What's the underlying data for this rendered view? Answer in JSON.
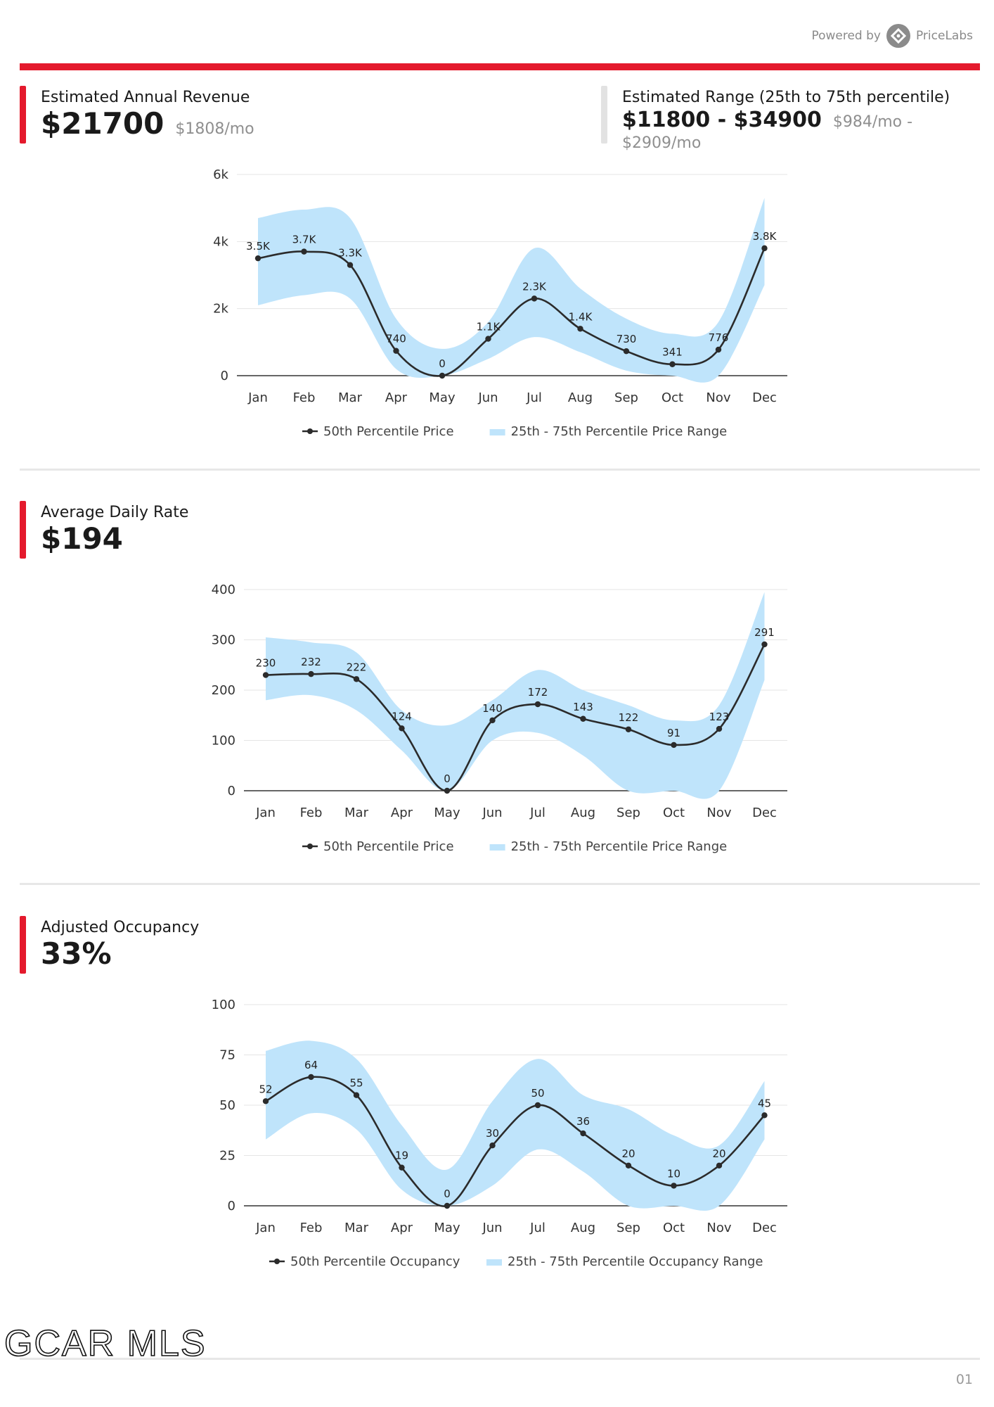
{
  "header": {
    "powered_by": "Powered by",
    "brand": "PriceLabs",
    "accent_color": "#e41a2d"
  },
  "revenue": {
    "label": "Estimated Annual Revenue",
    "value": "$21700",
    "monthly": "$1808/mo"
  },
  "range": {
    "label": "Estimated Range (25th to 75th percentile)",
    "value": "$11800 - $34900",
    "monthly": "$984/mo - $2909/mo"
  },
  "adr": {
    "label": "Average Daily Rate",
    "value": "$194"
  },
  "occupancy": {
    "label": "Adjusted Occupancy",
    "value": "33%"
  },
  "footer": {
    "logo_text": "GCAR MLS",
    "page": "01"
  },
  "chart_data": [
    {
      "type": "line",
      "title": "",
      "categories": [
        "Jan",
        "Feb",
        "Mar",
        "Apr",
        "May",
        "Jun",
        "Jul",
        "Aug",
        "Sep",
        "Oct",
        "Nov",
        "Dec"
      ],
      "ylim": [
        0,
        6000
      ],
      "yticks": [
        0,
        2000,
        4000,
        6000
      ],
      "ytick_labels": [
        "0",
        "2k",
        "4k",
        "6k"
      ],
      "series": [
        {
          "name": "50th Percentile Price",
          "values": [
            3500,
            3700,
            3300,
            740,
            0,
            1100,
            2300,
            1400,
            730,
            341,
            776,
            3800
          ],
          "labels": [
            "3.5K",
            "3.7K",
            "3.3K",
            "740",
            "0",
            "1.1K",
            "2.3K",
            "1.4K",
            "730",
            "341",
            "776",
            "3.8K"
          ]
        }
      ],
      "band": {
        "name": "25th - 75th Percentile Price Range",
        "low": [
          2100,
          2400,
          2300,
          200,
          0,
          500,
          1150,
          700,
          150,
          0,
          0,
          2700
        ],
        "high": [
          4700,
          4950,
          4700,
          1700,
          800,
          1600,
          3800,
          2600,
          1700,
          1250,
          1600,
          5300
        ]
      },
      "colors": {
        "line": "#2b2b2b",
        "band": "#bfe4fb"
      },
      "grid": true,
      "legend": "bottom"
    },
    {
      "type": "line",
      "title": "",
      "categories": [
        "Jan",
        "Feb",
        "Mar",
        "Apr",
        "May",
        "Jun",
        "Jul",
        "Aug",
        "Sep",
        "Oct",
        "Nov",
        "Dec"
      ],
      "ylim": [
        0,
        400
      ],
      "yticks": [
        0,
        100,
        200,
        300,
        400
      ],
      "ytick_labels": [
        "0",
        "100",
        "200",
        "300",
        "400"
      ],
      "series": [
        {
          "name": "50th Percentile Price",
          "values": [
            230,
            232,
            222,
            124,
            0,
            140,
            172,
            143,
            122,
            91,
            123,
            291
          ],
          "labels": [
            "230",
            "232",
            "222",
            "124",
            "0",
            "140",
            "172",
            "143",
            "122",
            "91",
            "123",
            "291"
          ]
        }
      ],
      "band": {
        "name": "25th - 75th Percentile Price Range",
        "low": [
          180,
          190,
          160,
          80,
          0,
          100,
          115,
          70,
          0,
          0,
          0,
          220
        ],
        "high": [
          305,
          295,
          275,
          160,
          130,
          180,
          240,
          200,
          170,
          140,
          170,
          395
        ]
      },
      "colors": {
        "line": "#2b2b2b",
        "band": "#bfe4fb"
      },
      "grid": true,
      "legend": "bottom"
    },
    {
      "type": "line",
      "title": "",
      "categories": [
        "Jan",
        "Feb",
        "Mar",
        "Apr",
        "May",
        "Jun",
        "Jul",
        "Aug",
        "Sep",
        "Oct",
        "Nov",
        "Dec"
      ],
      "ylim": [
        0,
        100
      ],
      "yticks": [
        0,
        25,
        50,
        75,
        100
      ],
      "ytick_labels": [
        "0",
        "25",
        "50",
        "75",
        "100"
      ],
      "series": [
        {
          "name": "50th Percentile Occupancy",
          "values": [
            52,
            64,
            55,
            19,
            0,
            30,
            50,
            36,
            20,
            10,
            20,
            45
          ],
          "labels": [
            "52",
            "64",
            "55",
            "19",
            "0",
            "30",
            "50",
            "36",
            "20",
            "10",
            "20",
            "45"
          ]
        }
      ],
      "band": {
        "name": "25th - 75th Percentile Occupancy Range",
        "low": [
          33,
          46,
          38,
          8,
          0,
          10,
          28,
          17,
          0,
          0,
          0,
          33
        ],
        "high": [
          77,
          82,
          73,
          40,
          18,
          52,
          73,
          55,
          48,
          35,
          30,
          62
        ]
      },
      "colors": {
        "line": "#2b2b2b",
        "band": "#bfe4fb"
      },
      "grid": true,
      "legend": "bottom"
    }
  ]
}
